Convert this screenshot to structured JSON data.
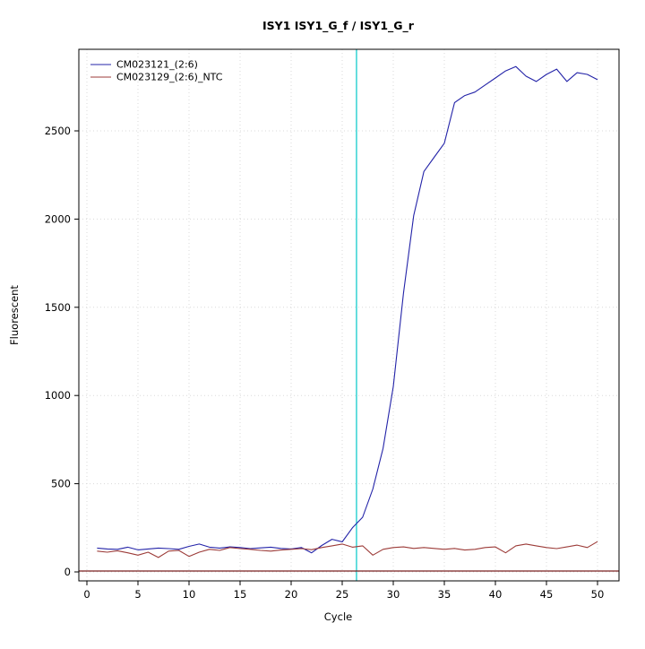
{
  "chart_data": {
    "type": "line",
    "title": "ISY1  ISY1_G_f / ISY1_G_r",
    "xlabel": "Cycle",
    "ylabel": "Fluorescent",
    "x": [
      1,
      2,
      3,
      4,
      5,
      6,
      7,
      8,
      9,
      10,
      11,
      12,
      13,
      14,
      15,
      16,
      17,
      18,
      19,
      20,
      21,
      22,
      23,
      24,
      25,
      26,
      27,
      28,
      29,
      30,
      31,
      32,
      33,
      34,
      35,
      36,
      37,
      38,
      39,
      40,
      41,
      42,
      43,
      44,
      45,
      46,
      47,
      48,
      49,
      50
    ],
    "series": [
      {
        "name": "CM023121_(2:6)",
        "color": "#2323a8",
        "values": [
          135,
          130,
          128,
          140,
          125,
          130,
          135,
          132,
          128,
          145,
          158,
          140,
          135,
          142,
          138,
          132,
          136,
          140,
          133,
          130,
          138,
          108,
          150,
          185,
          170,
          250,
          310,
          470,
          700,
          1050,
          1580,
          2020,
          2270,
          2350,
          2430,
          2660,
          2700,
          2720,
          2760,
          2800,
          2840,
          2865,
          2810,
          2780,
          2820,
          2850,
          2780,
          2830,
          2820,
          2790
        ]
      },
      {
        "name": "CM023129_(2:6)_NTC",
        "color": "#9c3b38",
        "values": [
          118,
          112,
          120,
          108,
          95,
          112,
          82,
          118,
          122,
          88,
          112,
          128,
          122,
          138,
          132,
          128,
          122,
          118,
          124,
          128,
          132,
          126,
          138,
          148,
          158,
          140,
          148,
          95,
          128,
          138,
          142,
          133,
          138,
          133,
          128,
          133,
          124,
          128,
          138,
          142,
          108,
          148,
          158,
          148,
          138,
          132,
          142,
          152,
          138,
          172
        ]
      }
    ],
    "threshold_line": {
      "y": 5,
      "color": "#7a2020"
    },
    "ct_line": {
      "x": 26.4,
      "color": "#00c8c8"
    },
    "x_ticks": [
      0,
      5,
      10,
      15,
      20,
      25,
      30,
      35,
      40,
      45,
      50
    ],
    "y_ticks": [
      0,
      500,
      1000,
      1500,
      2000,
      2500
    ],
    "xlim": [
      -1,
      52
    ],
    "ylim": [
      -60,
      2960
    ],
    "grid": true,
    "legend_position": "top-left"
  }
}
